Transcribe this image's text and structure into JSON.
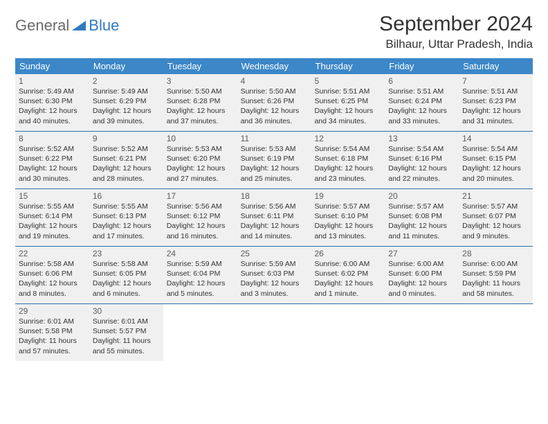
{
  "logo": {
    "word1": "General",
    "word2": "Blue"
  },
  "title": "September 2024",
  "location": "Bilhaur, Uttar Pradesh, India",
  "colors": {
    "header_bg": "#3b87c8",
    "header_text": "#ffffff",
    "cell_bg": "#f0f0f0",
    "row_border": "#2f6ea8",
    "logo_gray": "#6a6a6a",
    "logo_blue": "#2f78c2"
  },
  "daysOfWeek": [
    "Sunday",
    "Monday",
    "Tuesday",
    "Wednesday",
    "Thursday",
    "Friday",
    "Saturday"
  ],
  "weeks": [
    [
      {
        "n": "1",
        "sr": "Sunrise: 5:49 AM",
        "ss": "Sunset: 6:30 PM",
        "dl": "Daylight: 12 hours and 40 minutes."
      },
      {
        "n": "2",
        "sr": "Sunrise: 5:49 AM",
        "ss": "Sunset: 6:29 PM",
        "dl": "Daylight: 12 hours and 39 minutes."
      },
      {
        "n": "3",
        "sr": "Sunrise: 5:50 AM",
        "ss": "Sunset: 6:28 PM",
        "dl": "Daylight: 12 hours and 37 minutes."
      },
      {
        "n": "4",
        "sr": "Sunrise: 5:50 AM",
        "ss": "Sunset: 6:26 PM",
        "dl": "Daylight: 12 hours and 36 minutes."
      },
      {
        "n": "5",
        "sr": "Sunrise: 5:51 AM",
        "ss": "Sunset: 6:25 PM",
        "dl": "Daylight: 12 hours and 34 minutes."
      },
      {
        "n": "6",
        "sr": "Sunrise: 5:51 AM",
        "ss": "Sunset: 6:24 PM",
        "dl": "Daylight: 12 hours and 33 minutes."
      },
      {
        "n": "7",
        "sr": "Sunrise: 5:51 AM",
        "ss": "Sunset: 6:23 PM",
        "dl": "Daylight: 12 hours and 31 minutes."
      }
    ],
    [
      {
        "n": "8",
        "sr": "Sunrise: 5:52 AM",
        "ss": "Sunset: 6:22 PM",
        "dl": "Daylight: 12 hours and 30 minutes."
      },
      {
        "n": "9",
        "sr": "Sunrise: 5:52 AM",
        "ss": "Sunset: 6:21 PM",
        "dl": "Daylight: 12 hours and 28 minutes."
      },
      {
        "n": "10",
        "sr": "Sunrise: 5:53 AM",
        "ss": "Sunset: 6:20 PM",
        "dl": "Daylight: 12 hours and 27 minutes."
      },
      {
        "n": "11",
        "sr": "Sunrise: 5:53 AM",
        "ss": "Sunset: 6:19 PM",
        "dl": "Daylight: 12 hours and 25 minutes."
      },
      {
        "n": "12",
        "sr": "Sunrise: 5:54 AM",
        "ss": "Sunset: 6:18 PM",
        "dl": "Daylight: 12 hours and 23 minutes."
      },
      {
        "n": "13",
        "sr": "Sunrise: 5:54 AM",
        "ss": "Sunset: 6:16 PM",
        "dl": "Daylight: 12 hours and 22 minutes."
      },
      {
        "n": "14",
        "sr": "Sunrise: 5:54 AM",
        "ss": "Sunset: 6:15 PM",
        "dl": "Daylight: 12 hours and 20 minutes."
      }
    ],
    [
      {
        "n": "15",
        "sr": "Sunrise: 5:55 AM",
        "ss": "Sunset: 6:14 PM",
        "dl": "Daylight: 12 hours and 19 minutes."
      },
      {
        "n": "16",
        "sr": "Sunrise: 5:55 AM",
        "ss": "Sunset: 6:13 PM",
        "dl": "Daylight: 12 hours and 17 minutes."
      },
      {
        "n": "17",
        "sr": "Sunrise: 5:56 AM",
        "ss": "Sunset: 6:12 PM",
        "dl": "Daylight: 12 hours and 16 minutes."
      },
      {
        "n": "18",
        "sr": "Sunrise: 5:56 AM",
        "ss": "Sunset: 6:11 PM",
        "dl": "Daylight: 12 hours and 14 minutes."
      },
      {
        "n": "19",
        "sr": "Sunrise: 5:57 AM",
        "ss": "Sunset: 6:10 PM",
        "dl": "Daylight: 12 hours and 13 minutes."
      },
      {
        "n": "20",
        "sr": "Sunrise: 5:57 AM",
        "ss": "Sunset: 6:08 PM",
        "dl": "Daylight: 12 hours and 11 minutes."
      },
      {
        "n": "21",
        "sr": "Sunrise: 5:57 AM",
        "ss": "Sunset: 6:07 PM",
        "dl": "Daylight: 12 hours and 9 minutes."
      }
    ],
    [
      {
        "n": "22",
        "sr": "Sunrise: 5:58 AM",
        "ss": "Sunset: 6:06 PM",
        "dl": "Daylight: 12 hours and 8 minutes."
      },
      {
        "n": "23",
        "sr": "Sunrise: 5:58 AM",
        "ss": "Sunset: 6:05 PM",
        "dl": "Daylight: 12 hours and 6 minutes."
      },
      {
        "n": "24",
        "sr": "Sunrise: 5:59 AM",
        "ss": "Sunset: 6:04 PM",
        "dl": "Daylight: 12 hours and 5 minutes."
      },
      {
        "n": "25",
        "sr": "Sunrise: 5:59 AM",
        "ss": "Sunset: 6:03 PM",
        "dl": "Daylight: 12 hours and 3 minutes."
      },
      {
        "n": "26",
        "sr": "Sunrise: 6:00 AM",
        "ss": "Sunset: 6:02 PM",
        "dl": "Daylight: 12 hours and 1 minute."
      },
      {
        "n": "27",
        "sr": "Sunrise: 6:00 AM",
        "ss": "Sunset: 6:00 PM",
        "dl": "Daylight: 12 hours and 0 minutes."
      },
      {
        "n": "28",
        "sr": "Sunrise: 6:00 AM",
        "ss": "Sunset: 5:59 PM",
        "dl": "Daylight: 11 hours and 58 minutes."
      }
    ],
    [
      {
        "n": "29",
        "sr": "Sunrise: 6:01 AM",
        "ss": "Sunset: 5:58 PM",
        "dl": "Daylight: 11 hours and 57 minutes."
      },
      {
        "n": "30",
        "sr": "Sunrise: 6:01 AM",
        "ss": "Sunset: 5:57 PM",
        "dl": "Daylight: 11 hours and 55 minutes."
      },
      null,
      null,
      null,
      null,
      null
    ]
  ]
}
